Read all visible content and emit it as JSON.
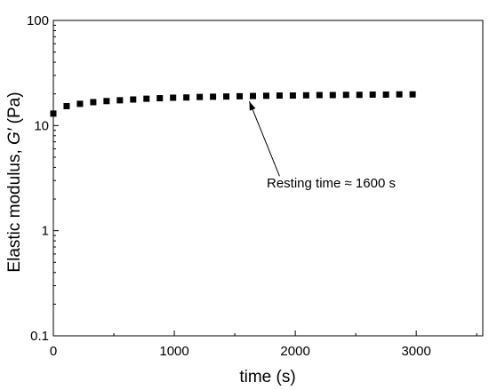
{
  "chart_data": {
    "type": "scatter",
    "title": "",
    "xlabel": "time (s)",
    "ylabel_prefix": "Elastic modulus, ",
    "ylabel_symbol": "G′",
    "ylabel_suffix": " (Pa)",
    "xlim": [
      0,
      3550
    ],
    "ylim": [
      0.1,
      100
    ],
    "yscale": "log",
    "grid": false,
    "x_ticks": [
      0,
      1000,
      2000,
      3000
    ],
    "x_tick_labels": [
      "0",
      "1000",
      "2000",
      "3000"
    ],
    "y_ticks": [
      0.1,
      1,
      10,
      100
    ],
    "y_tick_labels": [
      "0.1",
      "1",
      "10",
      "100"
    ],
    "series": [
      {
        "marker": "square",
        "color": "#000000",
        "points": [
          {
            "x": 0,
            "y": 13.0
          },
          {
            "x": 110,
            "y": 15.3
          },
          {
            "x": 220,
            "y": 16.1
          },
          {
            "x": 330,
            "y": 16.7
          },
          {
            "x": 440,
            "y": 17.1
          },
          {
            "x": 550,
            "y": 17.4
          },
          {
            "x": 660,
            "y": 17.7
          },
          {
            "x": 770,
            "y": 18.0
          },
          {
            "x": 880,
            "y": 18.2
          },
          {
            "x": 990,
            "y": 18.4
          },
          {
            "x": 1100,
            "y": 18.5
          },
          {
            "x": 1210,
            "y": 18.7
          },
          {
            "x": 1320,
            "y": 18.8
          },
          {
            "x": 1430,
            "y": 18.9
          },
          {
            "x": 1540,
            "y": 19.0
          },
          {
            "x": 1650,
            "y": 19.1
          },
          {
            "x": 1760,
            "y": 19.2
          },
          {
            "x": 1870,
            "y": 19.3
          },
          {
            "x": 1980,
            "y": 19.3
          },
          {
            "x": 2090,
            "y": 19.4
          },
          {
            "x": 2200,
            "y": 19.5
          },
          {
            "x": 2310,
            "y": 19.5
          },
          {
            "x": 2420,
            "y": 19.6
          },
          {
            "x": 2530,
            "y": 19.6
          },
          {
            "x": 2640,
            "y": 19.7
          },
          {
            "x": 2750,
            "y": 19.7
          },
          {
            "x": 2860,
            "y": 19.8
          },
          {
            "x": 2970,
            "y": 19.8
          }
        ]
      }
    ],
    "annotation": {
      "text": "Resting time ≈ 1600 s",
      "arrow_to": {
        "x": 1620,
        "y": 17.0
      },
      "arrow_from": {
        "x": 1870,
        "y": 3.3
      }
    }
  }
}
